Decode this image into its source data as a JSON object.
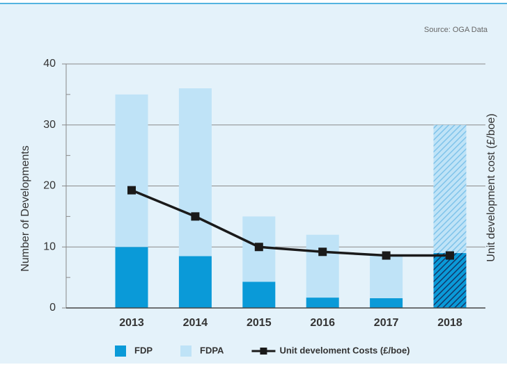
{
  "chart_data": {
    "type": "bar",
    "source": "Source: OGA Data",
    "ylabel": "Number of Developments",
    "y2label": "Unit development cost (£/boe)",
    "categories": [
      "2013",
      "2014",
      "2015",
      "2016",
      "2017",
      "2018"
    ],
    "ylim": [
      0,
      40
    ],
    "yticks": [
      0,
      10,
      20,
      30,
      40
    ],
    "minor_yticks": [
      5,
      15,
      25,
      35
    ],
    "grid": true,
    "stacked": true,
    "hatched": [
      false,
      false,
      false,
      false,
      false,
      true
    ],
    "series": [
      {
        "name": "FDP",
        "type": "bar",
        "color": "#0a9ad8",
        "hatch_color": "#123a6b",
        "values": [
          10,
          8.5,
          4.3,
          1.7,
          1.6,
          9
        ]
      },
      {
        "name": "FDPA",
        "type": "bar",
        "color": "#bfe3f7",
        "hatch_color": "#7fc3ea",
        "values": [
          25,
          27.5,
          10.7,
          10.3,
          7,
          21
        ]
      },
      {
        "name": "Unit develoment Costs (£/boe)",
        "type": "line",
        "color": "#1a1a1a",
        "values": [
          19.3,
          15,
          10,
          9.2,
          8.6,
          8.6
        ]
      }
    ],
    "legend": "bottom"
  }
}
